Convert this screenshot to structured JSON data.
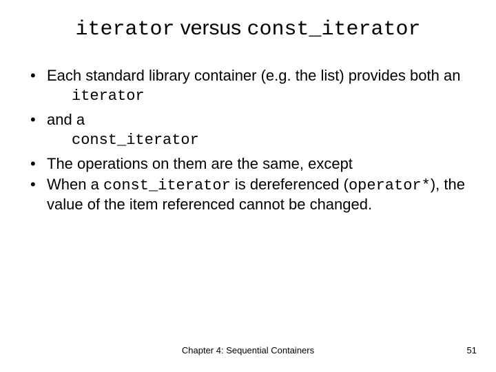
{
  "title": {
    "part1": "iterator",
    "versus": " versus ",
    "part2": "const_iterator"
  },
  "bullets": {
    "b1": "Each standard library container (e.g. the list) provides both an",
    "b1_sub": "iterator",
    "b2": "and a",
    "b2_sub": "const_iterator",
    "b3": "The operations on them are the same, except",
    "b4_pre": "When a ",
    "b4_code1": "const_iterator",
    "b4_mid": " is dereferenced (",
    "b4_code2": "operator*",
    "b4_post": "), the value of the item referenced cannot be changed."
  },
  "footer": {
    "center": "Chapter 4: Sequential Containers",
    "page": "51"
  },
  "style": {
    "background": "#ffffff",
    "text_color": "#000000",
    "title_fontsize": 30,
    "body_fontsize": 22,
    "footer_fontsize": 13,
    "mono_font": "Courier New",
    "sans_font": "Arial"
  }
}
